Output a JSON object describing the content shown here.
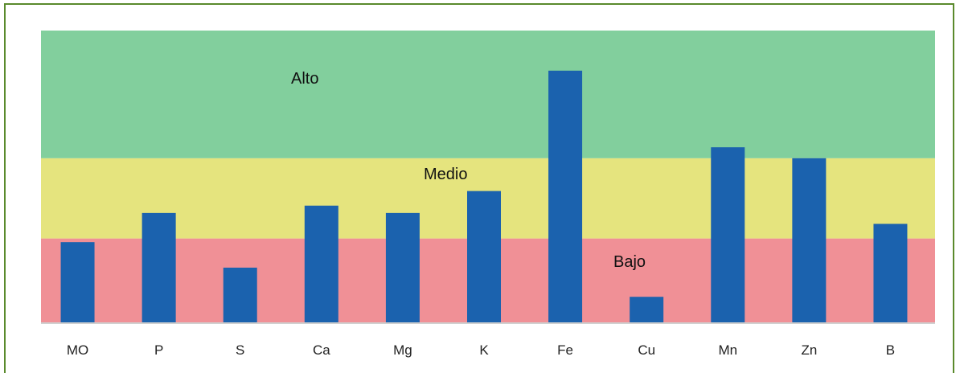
{
  "chart_data": {
    "type": "bar",
    "categories": [
      "MO",
      "P",
      "S",
      "Ca",
      "Mg",
      "K",
      "Fe",
      "Cu",
      "Mn",
      "Zn",
      "B"
    ],
    "values": [
      2.2,
      3.0,
      1.5,
      3.2,
      3.0,
      3.6,
      6.9,
      0.7,
      4.8,
      4.5,
      2.7
    ],
    "ylim": [
      0,
      8
    ],
    "bands": [
      {
        "label": "Bajo",
        "from": 0,
        "to": 2.3,
        "color": "#f09096"
      },
      {
        "label": "Medio",
        "from": 2.3,
        "to": 4.5,
        "color": "#e5e47e"
      },
      {
        "label": "Alto",
        "from": 4.5,
        "to": 8,
        "color": "#82cf9d"
      }
    ],
    "bar_color": "#1b62ae",
    "grid": false,
    "legend": "none"
  },
  "labels": {
    "alto": "Alto",
    "medio": "Medio",
    "bajo": "Bajo"
  }
}
